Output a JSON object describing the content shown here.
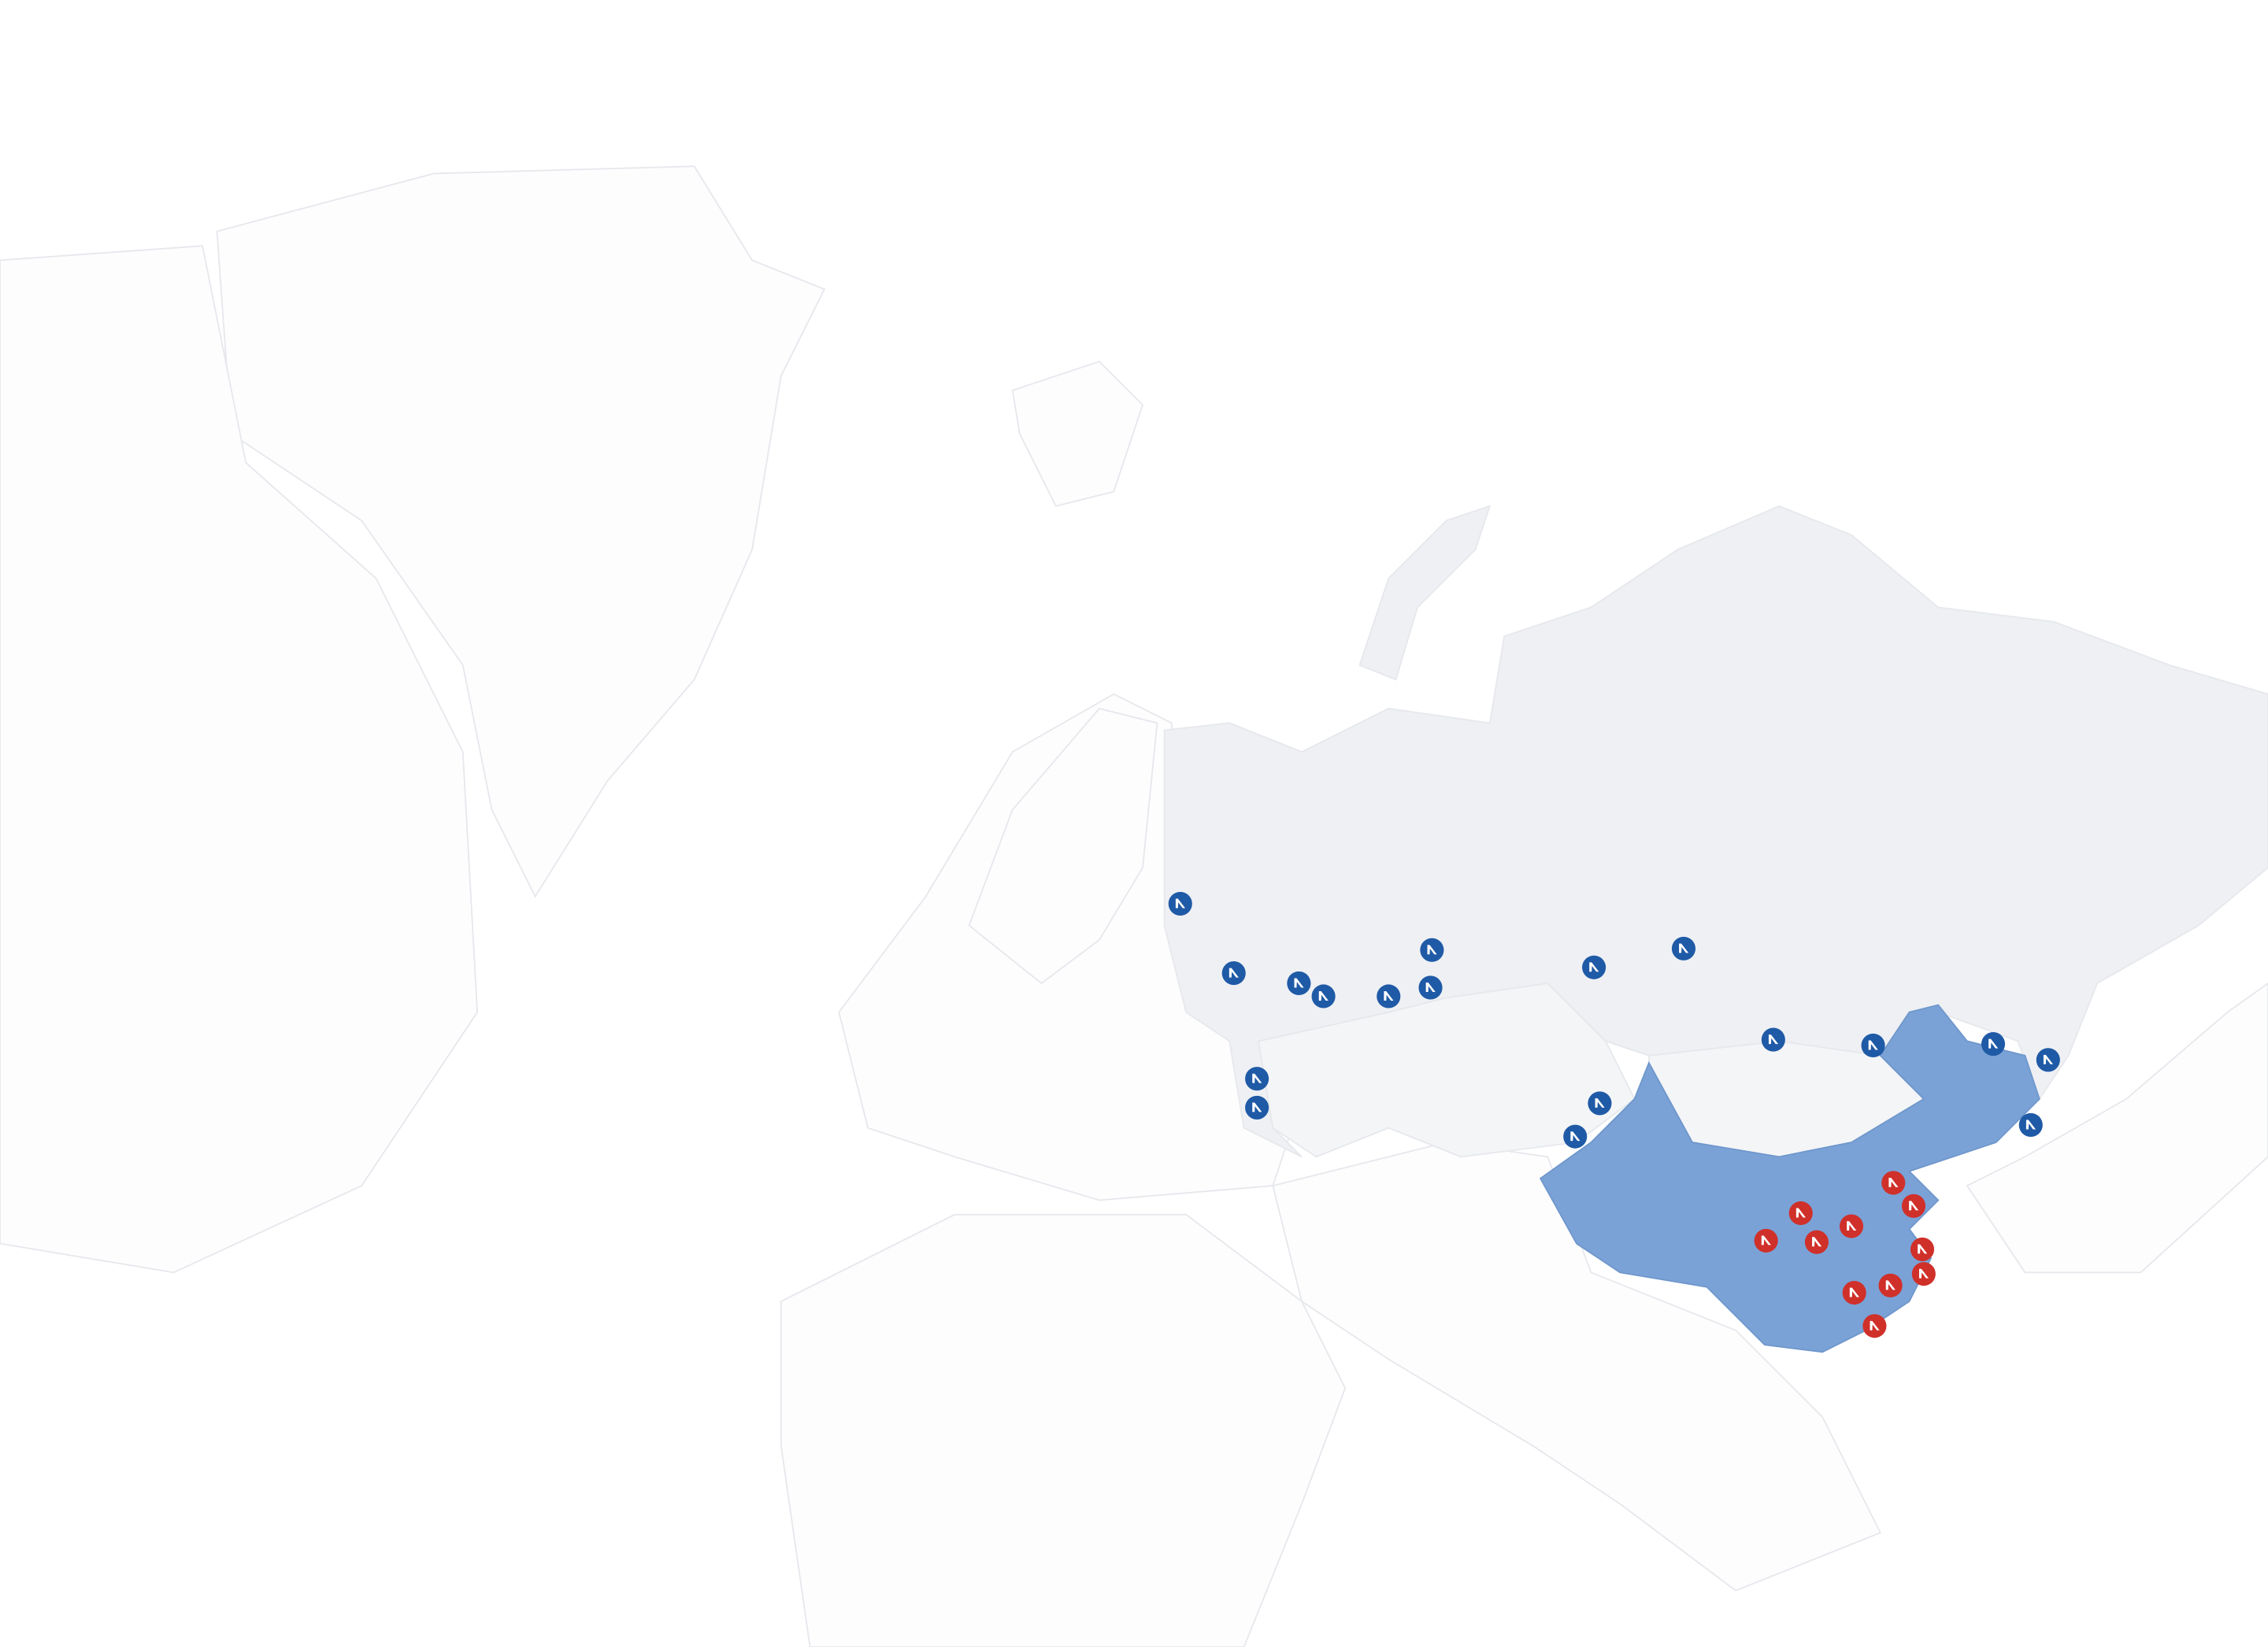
{
  "map": {
    "colors": {
      "background": "#ffffff",
      "land_default": "#fdfdfe",
      "border": "#e6e8ec",
      "russia": "#eef0f4",
      "neighbors": "#f4f5f7",
      "china": "#7aa2d6",
      "marker_blue": "#1f5aa6",
      "marker_red": "#d0302a",
      "marker_glyph": "#ffffff"
    },
    "highlighted_regions": [
      "Russia",
      "China"
    ],
    "marker_icon": "brand-logo-icon",
    "marker_groups": [
      {
        "color": "marker_blue",
        "count": 18
      },
      {
        "color": "marker_red",
        "count": 11
      }
    ]
  }
}
